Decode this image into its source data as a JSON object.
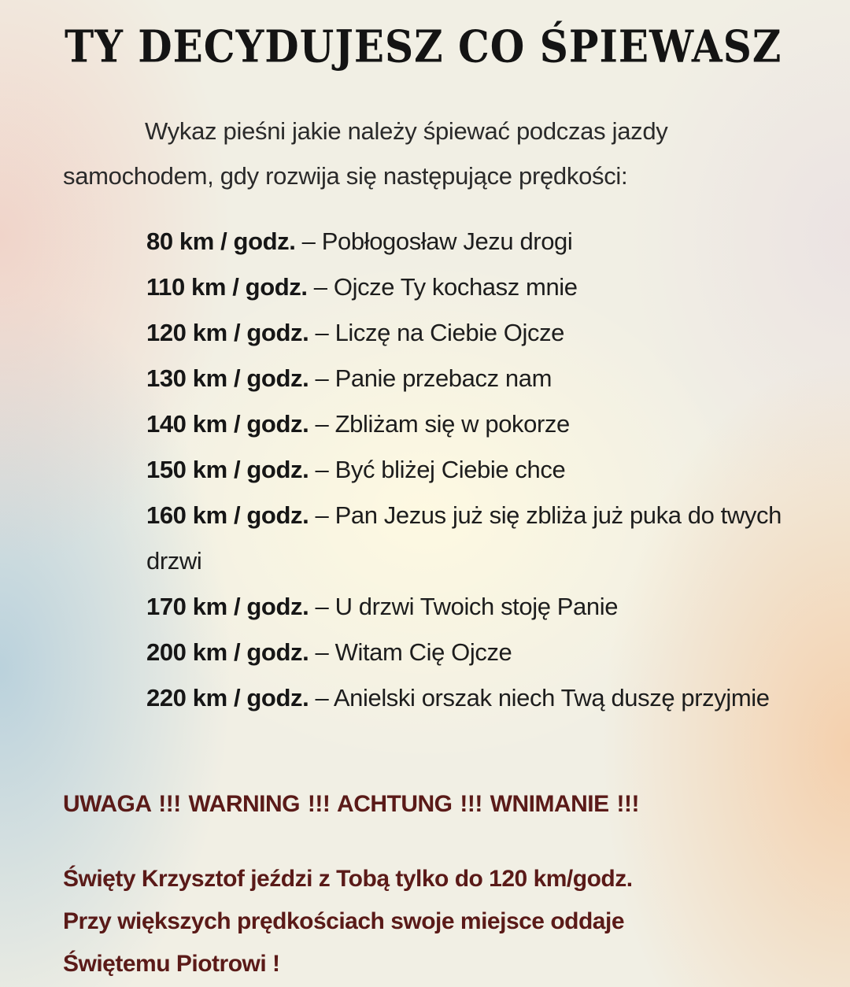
{
  "title": "TY DECYDUJESZ CO ŚPIEWASZ",
  "intro": "Wykaz pieśni jakie należy śpiewać podczas jazdy samochodem, gdy rozwija się następujące prędkości:",
  "items": [
    {
      "speed": "80 km / godz.",
      "song": "Pobłogosław Jezu drogi"
    },
    {
      "speed": "110 km / godz.",
      "song": "Ojcze Ty kochasz mnie"
    },
    {
      "speed": "120 km / godz.",
      "song": "Liczę na Ciebie Ojcze"
    },
    {
      "speed": "130 km / godz.",
      "song": "Panie przebacz nam"
    },
    {
      "speed": "140 km / godz.",
      "song": "Zbliżam się w pokorze"
    },
    {
      "speed": "150 km / godz.",
      "song": "Być bliżej Ciebie chce"
    },
    {
      "speed": "160 km / godz.",
      "song": "Pan Jezus już się zbliża już puka do twych drzwi"
    },
    {
      "speed": "170 km / godz.",
      "song": "U drzwi Twoich stoję Panie"
    },
    {
      "speed": "200 km / godz.",
      "song": "Witam Cię Ojcze"
    },
    {
      "speed": "220 km / godz.",
      "song": "Anielski orszak niech Twą duszę przyjmie"
    }
  ],
  "warning": "UWAGA !!! WARNING !!! ACHTUNG !!!  WNIMANIE !!!",
  "note_lines": [
    "Święty Krzysztof jeździ z Tobą tylko do 120 km/godz.",
    "Przy większych prędkościach swoje miejsce oddaje",
    "Świętemu Piotrowi !"
  ],
  "colors": {
    "warning_text": "#5a1a18",
    "body_text": "#1d1d1d"
  }
}
